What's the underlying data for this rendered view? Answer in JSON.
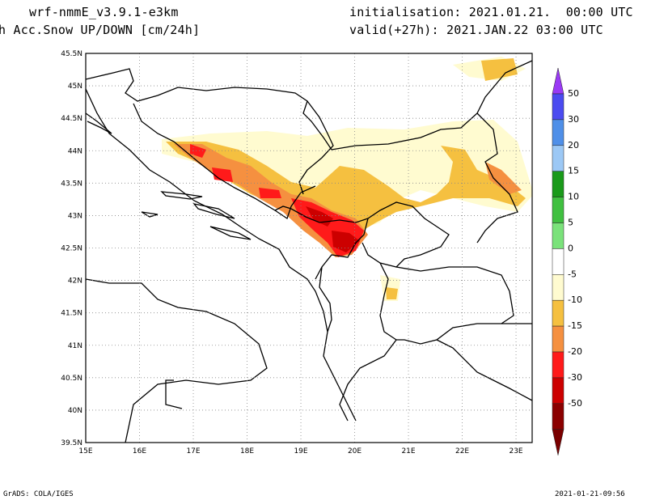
{
  "header": {
    "model": "wrf-nmmE_v3.9.1-e3km",
    "field": "h Acc.Snow UP/DOWN [cm/24h]",
    "init": "initialisation: 2021.01.21.  00:00 UTC",
    "valid": "valid(+27h): 2021.JAN.22 03:00 UTC"
  },
  "map": {
    "lon_ticks": [
      "15E",
      "16E",
      "17E",
      "18E",
      "19E",
      "20E",
      "21E",
      "22E",
      "23E"
    ],
    "lat_ticks": [
      "45.5N",
      "45N",
      "44.5N",
      "44N",
      "43.5N",
      "43N",
      "42.5N",
      "42N",
      "41.5N",
      "41N",
      "40.5N",
      "40N",
      "39.5N"
    ],
    "lon_range": [
      15,
      23.3
    ],
    "lat_range": [
      39.5,
      45.5
    ],
    "grid": true
  },
  "colorbar": {
    "labels": [
      "50",
      "30",
      "20",
      "15",
      "10",
      "5",
      "0",
      "-5",
      "-10",
      "-15",
      "-20",
      "-30",
      "-50"
    ],
    "colors_top_to_bottom": [
      "#4b4bf0",
      "#4f8fe8",
      "#9cc8f5",
      "#1a9a1a",
      "#40c040",
      "#7ae27a",
      "#ffffff",
      "#fffbd0",
      "#f5c040",
      "#f59040",
      "#ff1a1a",
      "#cc0000",
      "#8b0000"
    ],
    "arrow_top_color": "#9a3af5",
    "arrow_bottom_color": "#7a0000"
  },
  "footer": {
    "left": "GrADS: COLA/IGES",
    "right": "2021-01-21-09:56"
  }
}
